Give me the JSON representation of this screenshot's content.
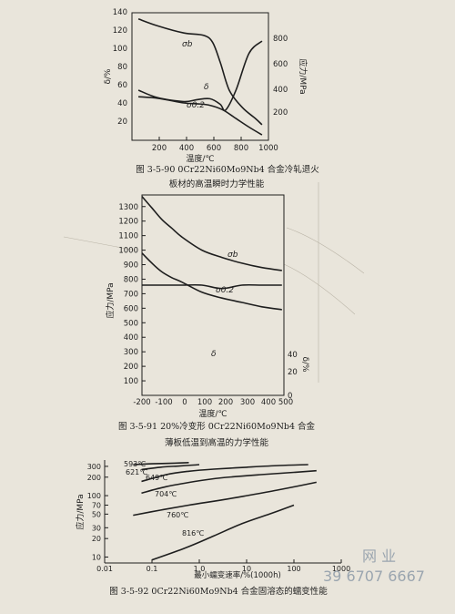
{
  "fig1": {
    "caption_line1": "图 3-5-90   0Cr22Ni60Mo9Nb4 合金冷轧退火",
    "caption_line2": "板材的高温瞬时力学性能",
    "chart_data": {
      "type": "line",
      "x_label": "温度/℃",
      "y_left_label": "δ/%",
      "y_right_label": "应力/MPa",
      "x_ticks": [
        "200",
        "400",
        "600",
        "800",
        "1000"
      ],
      "y_left_ticks": [
        "20",
        "40",
        "60",
        "80",
        "100",
        "120",
        "140"
      ],
      "y_right_ticks": [
        "200",
        "400",
        "600",
        "800"
      ],
      "xlim": [
        0,
        1050
      ],
      "y_left_lim": [
        10,
        145
      ],
      "y_right_lim": [
        60,
        880
      ],
      "series": [
        {
          "name": "σb",
          "axis": "right",
          "x": [
            50,
            200,
            400,
            550,
            620,
            680,
            750,
            850,
            950,
            1000
          ],
          "y": [
            840,
            795,
            750,
            735,
            690,
            560,
            380,
            270,
            200,
            160
          ]
        },
        {
          "name": "δ",
          "axis": "left",
          "x": [
            50,
            200,
            400,
            500,
            600,
            680,
            720,
            800,
            900,
            1000
          ],
          "y": [
            63,
            55,
            51,
            53,
            54,
            48,
            42,
            63,
            102,
            115
          ]
        },
        {
          "name": "σ0.2",
          "axis": "right",
          "x": [
            50,
            200,
            400,
            500,
            600,
            700,
            800,
            900,
            1000
          ],
          "y": [
            340,
            330,
            300,
            295,
            285,
            255,
            200,
            145,
            95
          ]
        }
      ]
    }
  },
  "fig2": {
    "caption_line1": "图 3-5-91   20%冷变形 0Cr22Ni60Mo9Nb4 合金",
    "caption_line2": "薄板低温到高温的力学性能",
    "chart_data": {
      "type": "line",
      "x_label": "温度/℃",
      "y_left_label": "应力/MPa",
      "y_right_label": "δ/%",
      "x_ticks": [
        "-200",
        "-100",
        "0",
        "100",
        "200",
        "300",
        "400",
        "500"
      ],
      "y_left_ticks": [
        "100",
        "200",
        "300",
        "400",
        "500",
        "600",
        "700",
        "800",
        "900",
        "1000",
        "1100",
        "1200",
        "1300"
      ],
      "y_right_ticks": [
        "0",
        "20",
        "40"
      ],
      "xlim": [
        -200,
        510
      ],
      "y_left_lim": [
        0,
        1380
      ],
      "y_right_lim": [
        0,
        60
      ],
      "series": [
        {
          "name": "σb",
          "axis": "left",
          "x": [
            -200,
            -150,
            -100,
            -50,
            0,
            100,
            200,
            300,
            400,
            500
          ],
          "y": [
            1370,
            1290,
            1210,
            1150,
            1090,
            1000,
            950,
            910,
            880,
            860
          ]
        },
        {
          "name": "σ0.2",
          "axis": "left",
          "x": [
            -200,
            -150,
            -100,
            -50,
            0,
            100,
            200,
            300,
            400,
            500
          ],
          "y": [
            980,
            910,
            850,
            810,
            780,
            710,
            670,
            640,
            610,
            590
          ]
        },
        {
          "name": "δ",
          "axis": "right",
          "x": [
            -200,
            -100,
            0,
            100,
            200,
            300,
            400,
            500
          ],
          "y": [
            33,
            33,
            33,
            33,
            32,
            33,
            33,
            33
          ]
        }
      ]
    }
  },
  "fig3": {
    "caption": "图 3-5-92   0Cr22Ni60Mo9Nb4 合金固溶态的蠕变性能",
    "chart_data": {
      "type": "line",
      "x_label": "最小蠕变速率/%(1000h)",
      "y_label": "应力/MPa",
      "x_ticks": [
        "0.01",
        "0.1",
        "1.0",
        "10",
        "100",
        "1000"
      ],
      "y_ticks": [
        "10",
        "20",
        "30",
        "50",
        "70",
        "100",
        "200",
        "300"
      ],
      "xlim": [
        0.01,
        1000
      ],
      "ylim": [
        8,
        380
      ],
      "x_scale": "log",
      "y_scale": "log",
      "series": [
        {
          "name": "593℃",
          "x": [
            0.04,
            0.1,
            0.3,
            0.6
          ],
          "y": [
            320,
            330,
            338,
            345
          ]
        },
        {
          "name": "621℃",
          "x": [
            0.06,
            0.15,
            0.4,
            1.0
          ],
          "y": [
            265,
            290,
            305,
            320
          ]
        },
        {
          "name": "649℃",
          "x": [
            0.06,
            0.2,
            0.6,
            2.0,
            10,
            50,
            200
          ],
          "y": [
            170,
            220,
            250,
            270,
            290,
            310,
            320
          ]
        },
        {
          "name": "704℃",
          "x": [
            0.06,
            0.2,
            0.8,
            3.0,
            20,
            100,
            300
          ],
          "y": [
            110,
            140,
            170,
            195,
            220,
            240,
            255
          ]
        },
        {
          "name": "760℃",
          "x": [
            0.04,
            0.15,
            0.6,
            3.0,
            10,
            50,
            300
          ],
          "y": [
            48,
            58,
            70,
            85,
            100,
            125,
            165
          ]
        },
        {
          "name": "816℃",
          "x": [
            0.1,
            0.5,
            2.0,
            8.0,
            30,
            100
          ],
          "y": [
            9,
            14,
            22,
            35,
            50,
            70
          ]
        }
      ]
    }
  },
  "watermark": {
    "line1": "网  业",
    "line2": "39 6707 6667"
  }
}
